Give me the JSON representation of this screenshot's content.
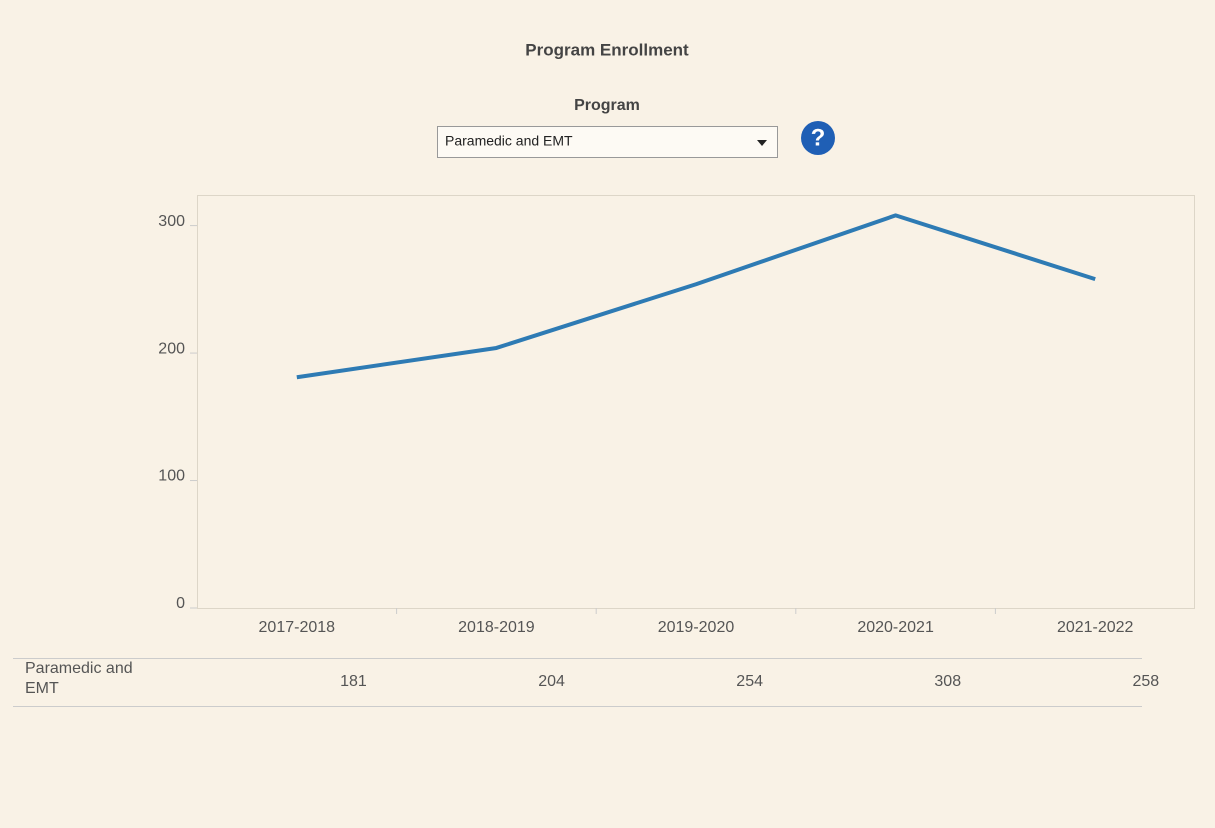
{
  "chart_data": {
    "type": "line",
    "title": "Program Enrollment",
    "filter": {
      "label": "Program",
      "selected": "Paramedic and EMT"
    },
    "categories": [
      "2017-2018",
      "2018-2019",
      "2019-2020",
      "2020-2021",
      "2021-2022"
    ],
    "series": [
      {
        "name": "Paramedic and EMT",
        "color": "#2e7bb4",
        "values": [
          181,
          204,
          254,
          308,
          258
        ]
      }
    ],
    "ylim": [
      0,
      324
    ],
    "yticks": [
      0,
      100,
      200,
      300
    ],
    "grid": false
  }
}
